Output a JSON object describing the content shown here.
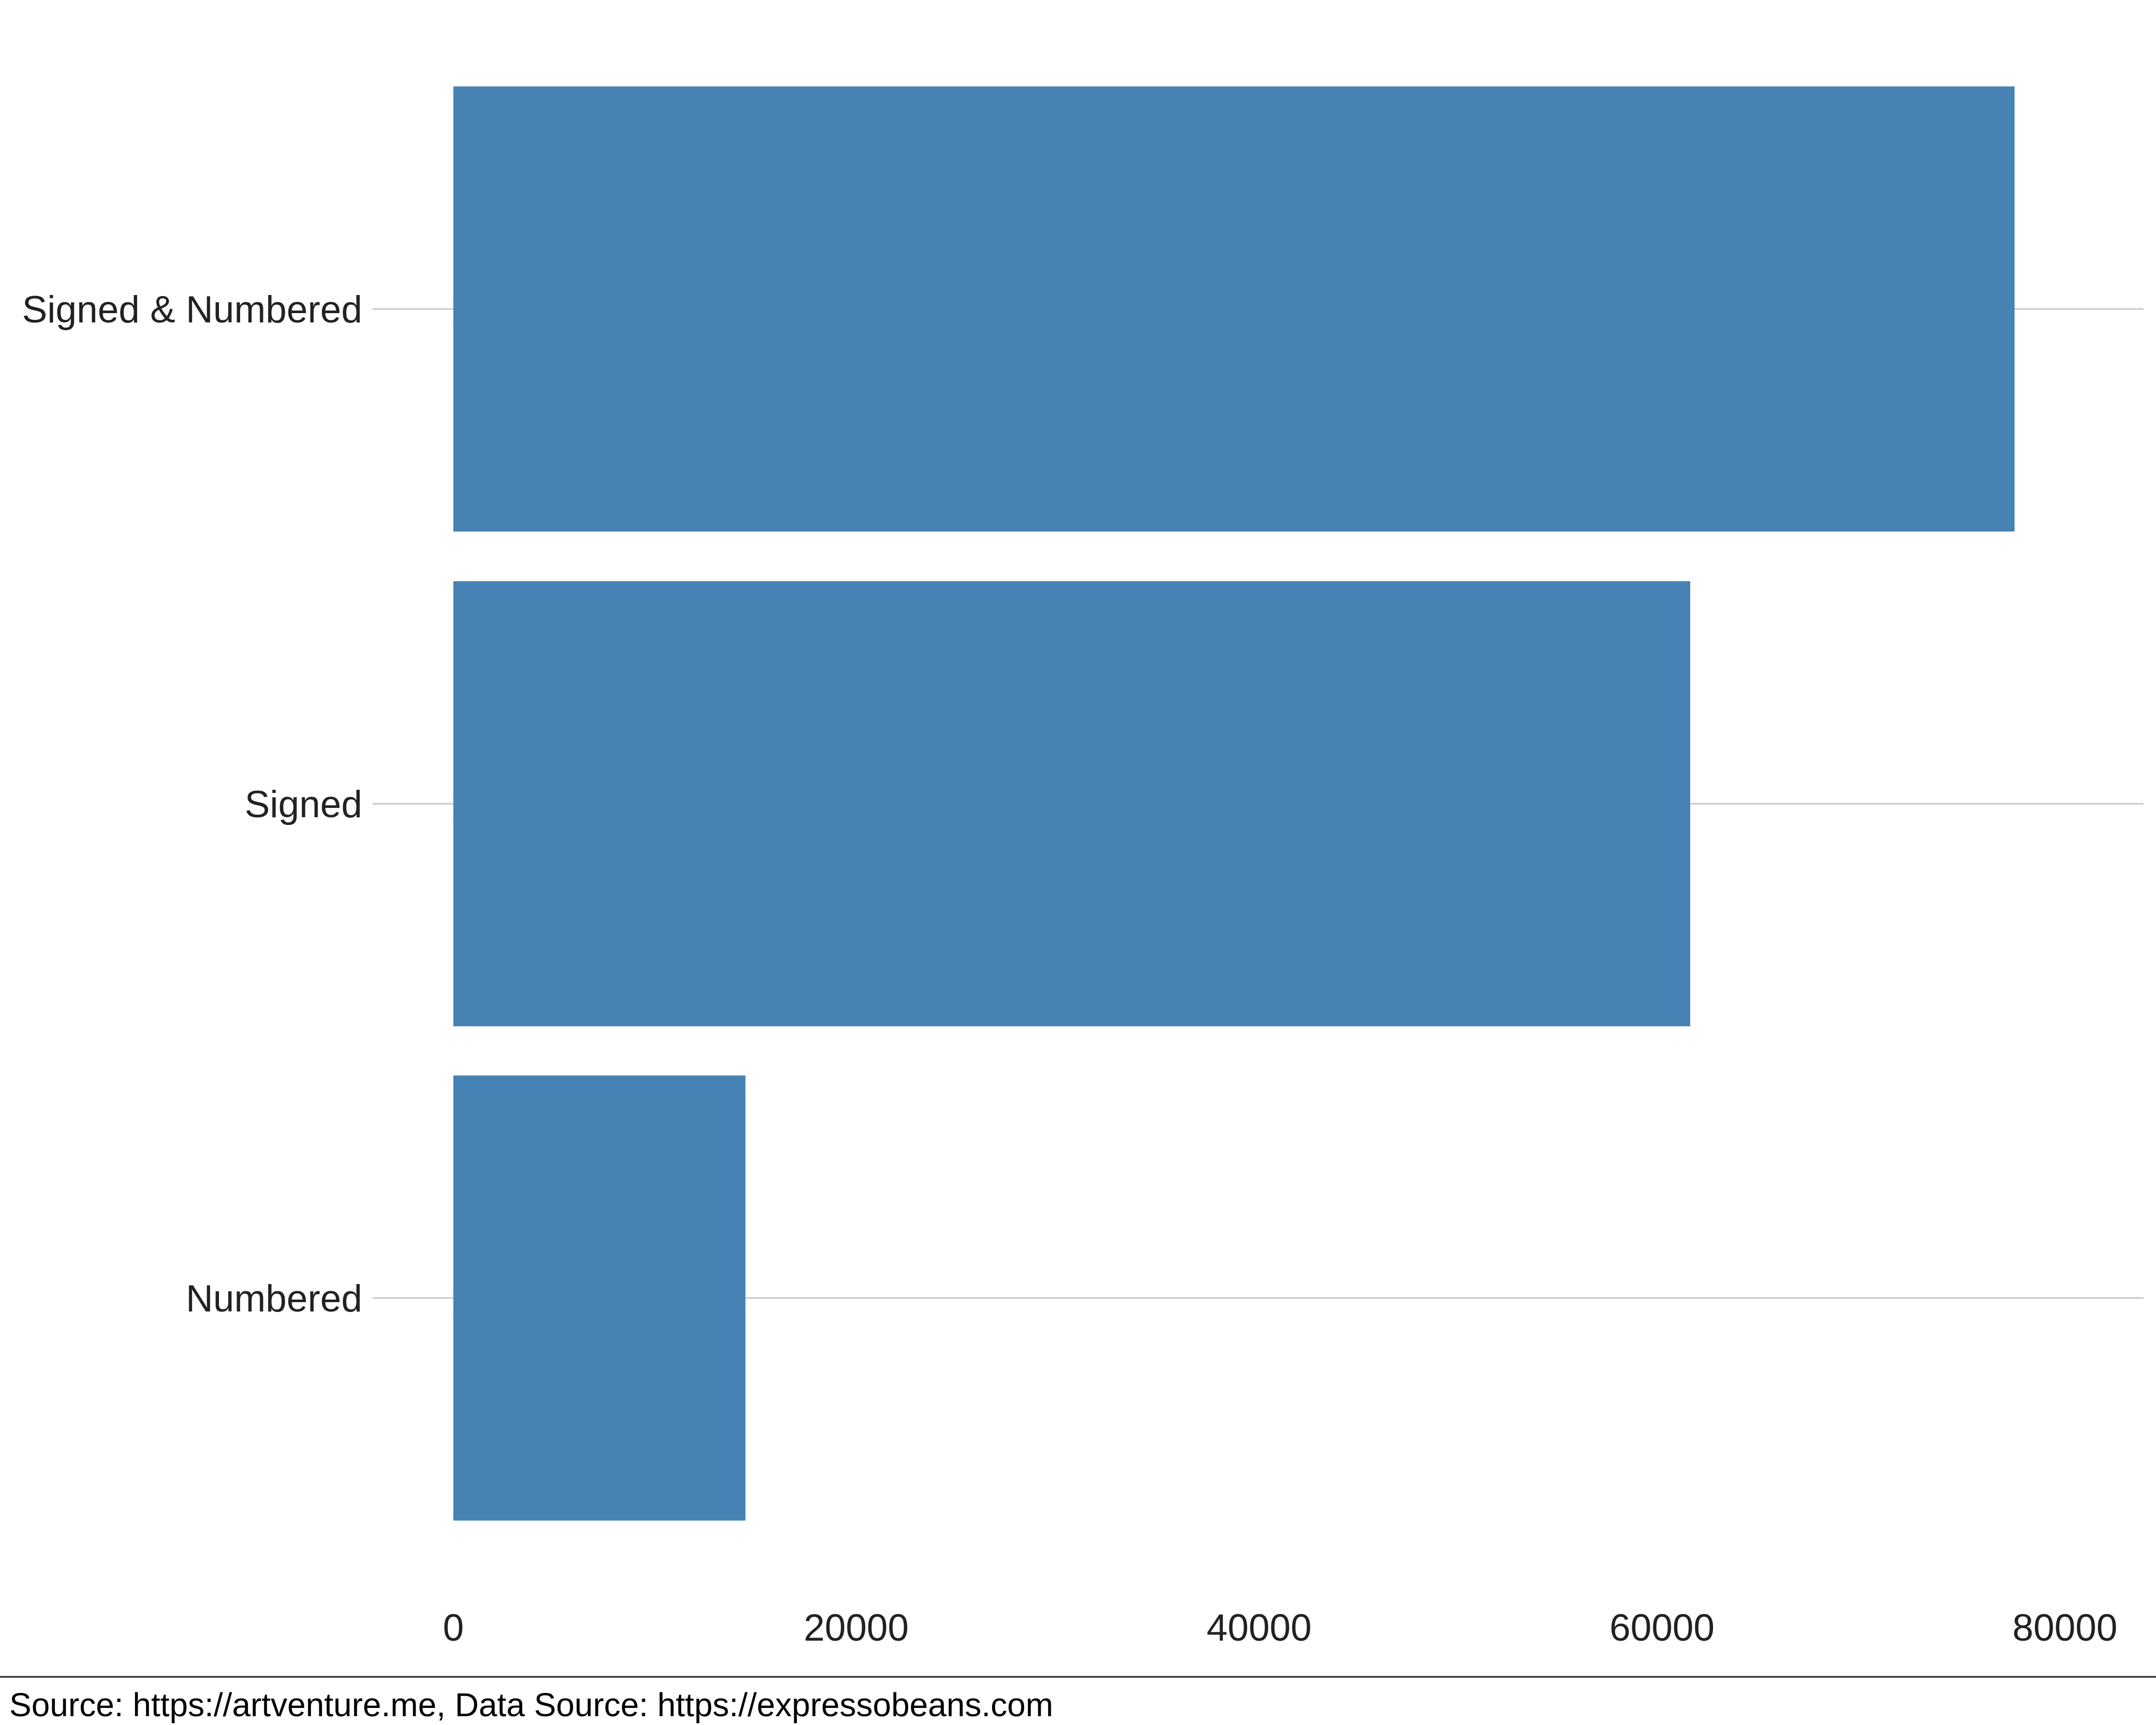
{
  "chart_data": {
    "type": "bar",
    "orientation": "horizontal",
    "categories": [
      "Signed & Numbered",
      "Signed",
      "Numbered"
    ],
    "values": [
      77500,
      61400,
      14500
    ],
    "xlim": [
      0,
      80000
    ],
    "x_ticks": [
      "0",
      "20000",
      "40000",
      "60000",
      "80000"
    ],
    "x_tick_values": [
      0,
      20000,
      40000,
      60000,
      80000
    ],
    "title": "",
    "xlabel": "",
    "ylabel": "",
    "grid": "horizontal major lines at categories",
    "legend": "none",
    "bar_color": "#4682b4",
    "grid_color": "#c8c8c8"
  },
  "caption": "Source: https://artventure.me, Data Source: https://expressobeans.com"
}
